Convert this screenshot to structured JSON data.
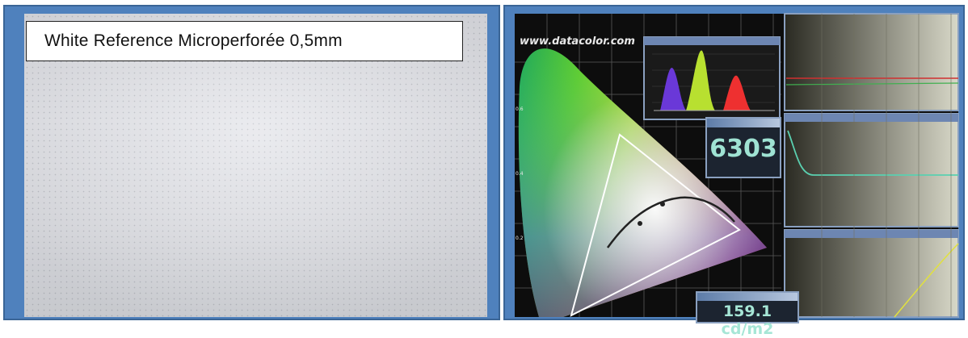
{
  "left_panel": {
    "caption": "White Reference Microperforée  0,5mm"
  },
  "right_panel": {
    "url": "www.datacolor.com",
    "color_temperature": "6303",
    "luminance": "159.1 cd/m2"
  },
  "colors": {
    "frame_blue": "#4f81bd",
    "screen_white": "#e2e3e8",
    "software_background": "#0d0d0d",
    "value_text": "#9fe3d3"
  }
}
